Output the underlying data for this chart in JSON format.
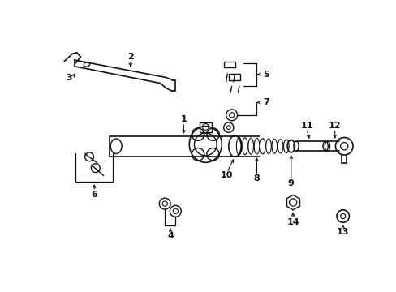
{
  "background_color": "#ffffff",
  "line_color": "#111111",
  "figsize": [
    4.89,
    3.6
  ],
  "dpi": 100
}
